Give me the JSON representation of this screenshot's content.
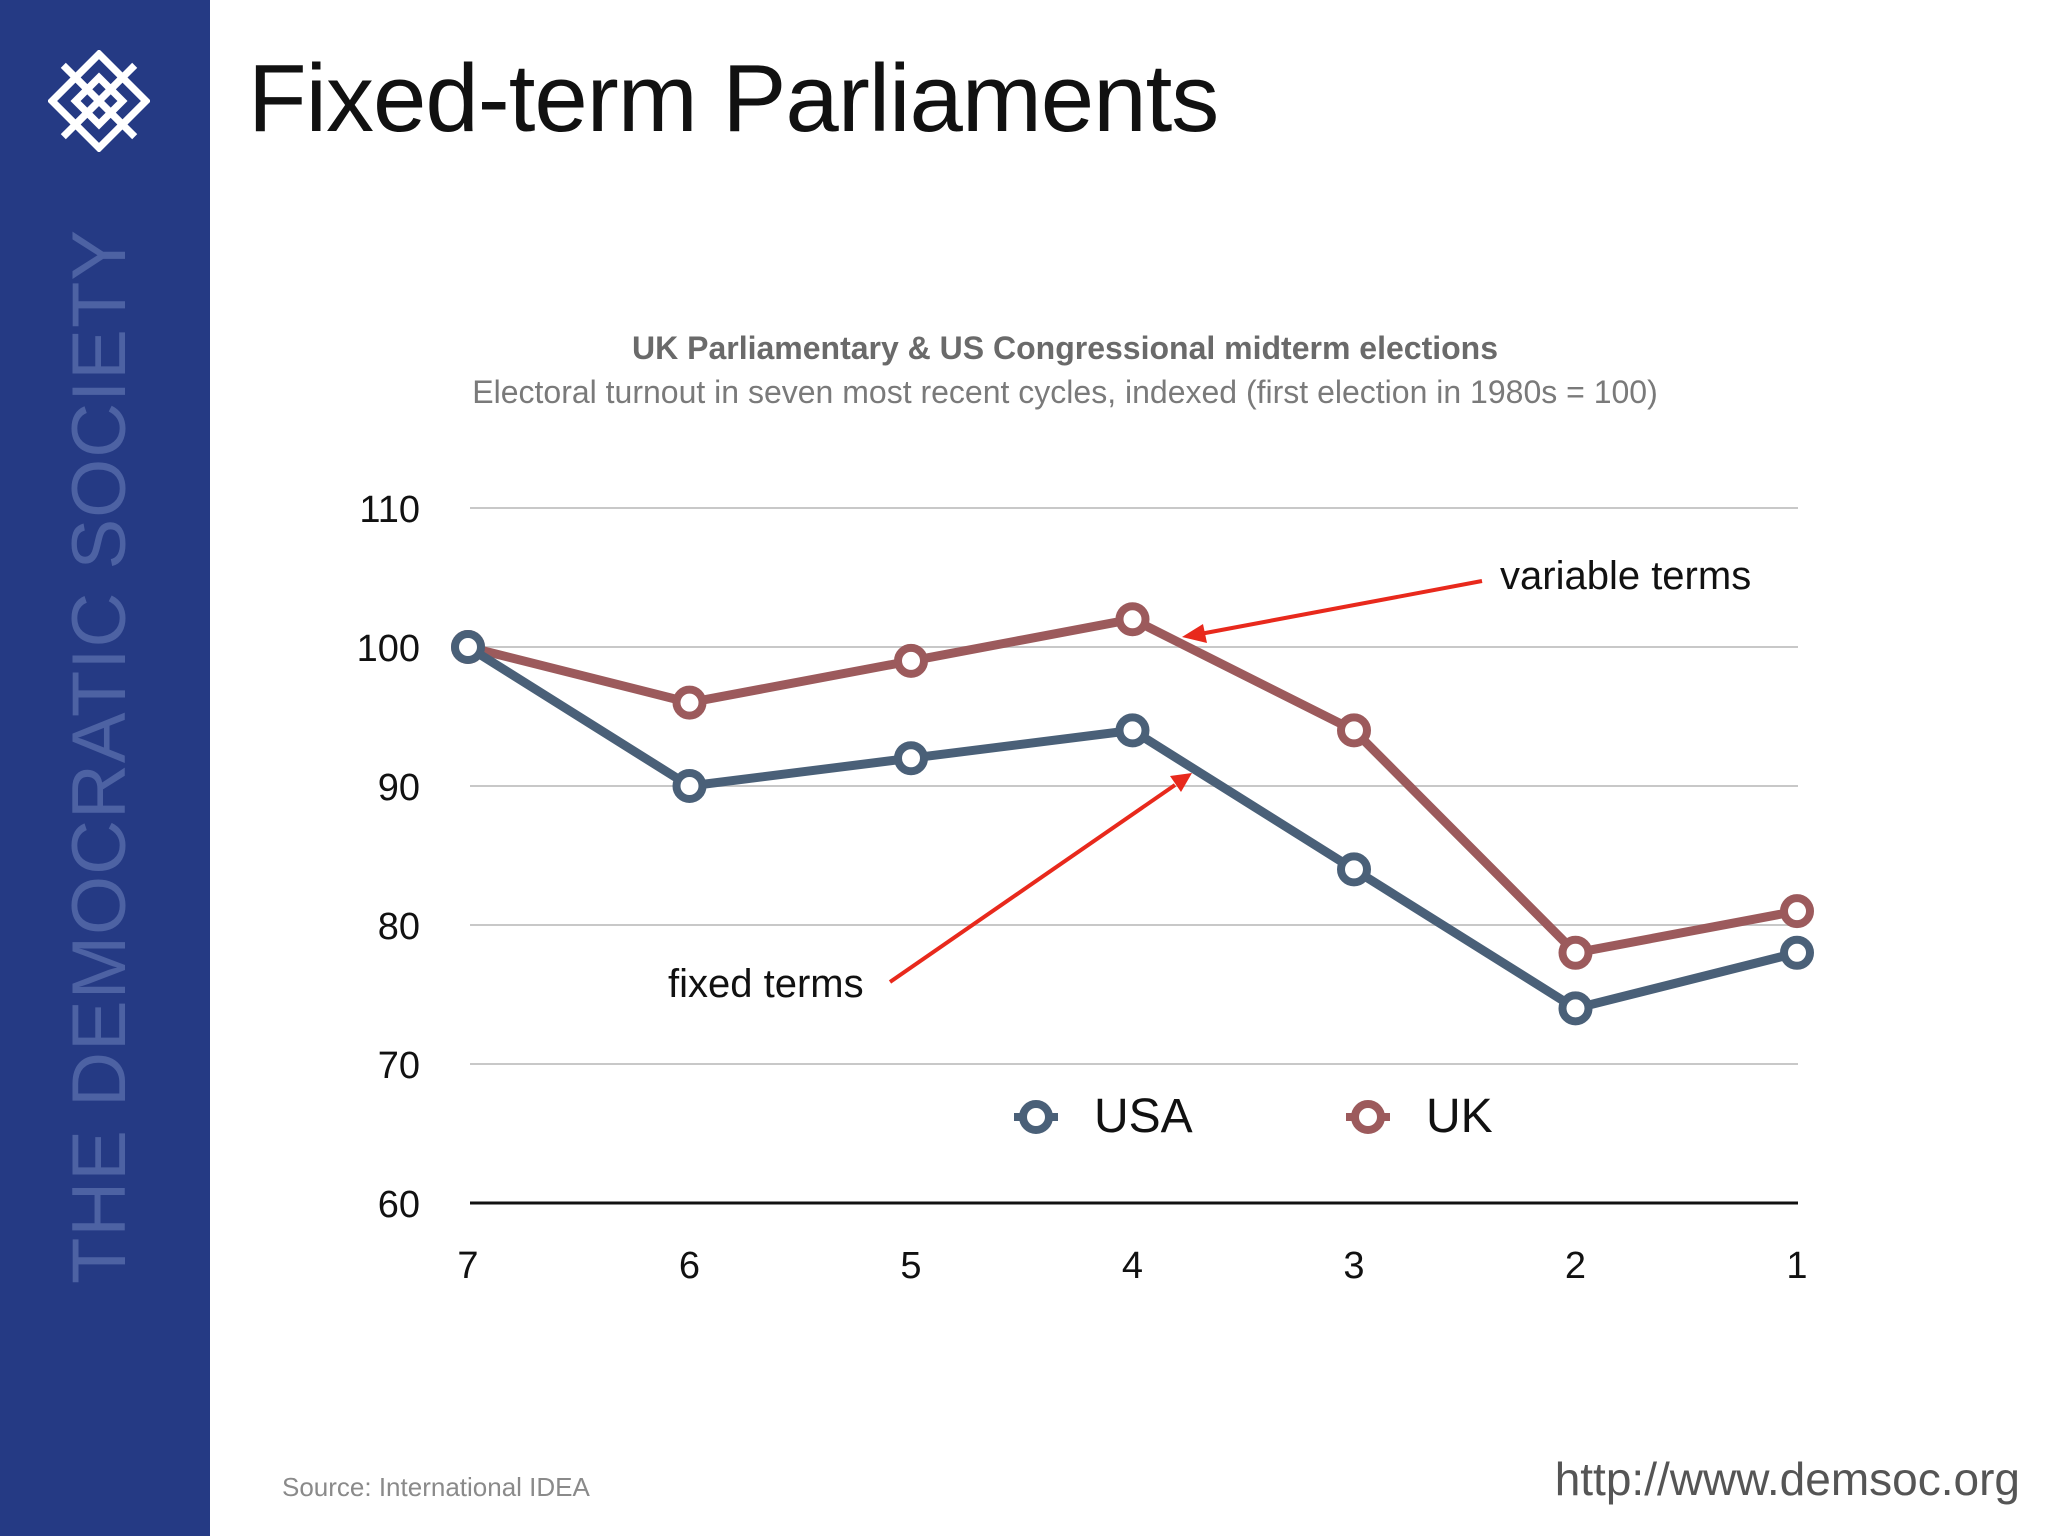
{
  "header": {
    "title": "Fixed-term Parliaments"
  },
  "sidebar": {
    "brand_text": "THE DEMOCRATIC SOCIETY",
    "logo_icon": "interlaced-square-logo-icon"
  },
  "footer": {
    "source": "Source: International IDEA",
    "url": "http://www.demsoc.org"
  },
  "colors": {
    "sidebar": "#253a84",
    "usa": "#4a6078",
    "uk": "#9c5a5c",
    "annotation": "#e8291c",
    "grid": "#c8c8c8"
  },
  "chart_data": {
    "type": "line",
    "title": "UK Parliamentary & US Congressional midterm elections",
    "subtitle": "Electoral turnout in seven most recent cycles, indexed (first election in 1980s = 100)",
    "categories": [
      "7",
      "6",
      "5",
      "4",
      "3",
      "2",
      "1"
    ],
    "yticks": [
      "110",
      "100",
      "90",
      "80",
      "70",
      "60"
    ],
    "ylim": [
      60,
      110
    ],
    "grid": true,
    "legend_position": "bottom-center",
    "series": [
      {
        "name": "USA",
        "values": [
          100,
          90,
          92,
          94,
          84,
          74,
          78
        ]
      },
      {
        "name": "UK",
        "values": [
          100,
          96,
          99,
          102,
          94,
          78,
          81
        ]
      }
    ],
    "annotations": [
      {
        "text": "variable terms",
        "points_to": {
          "category": "4",
          "value": 101
        }
      },
      {
        "text": "fixed terms",
        "points_to": {
          "category": "4",
          "value": 91
        }
      }
    ]
  }
}
